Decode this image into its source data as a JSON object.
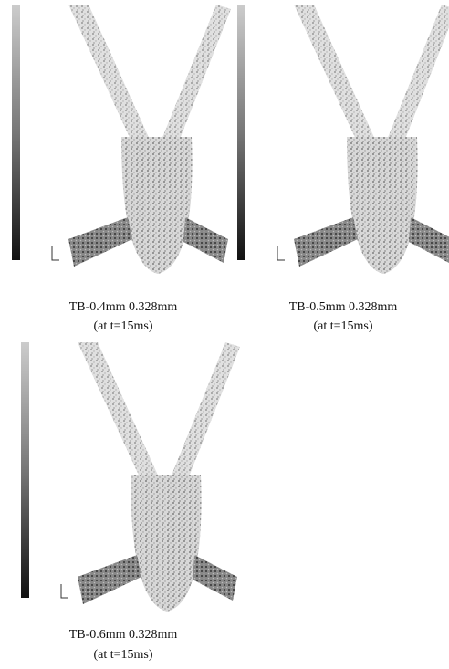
{
  "panels": [
    {
      "caption": "TB-0.4mm 0.328mm",
      "time": "(at t=15ms)"
    },
    {
      "caption": "TB-0.5mm 0.328mm",
      "time": "(at t=15ms)"
    },
    {
      "caption": "TB-0.6mm 0.328mm",
      "time": "(at t=15ms)"
    }
  ]
}
